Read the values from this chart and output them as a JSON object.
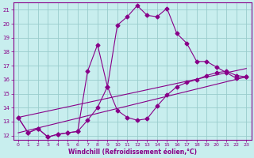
{
  "xlabel": "Windchill (Refroidissement éolien,°C)",
  "xlim": [
    -0.5,
    23.5
  ],
  "ylim": [
    11.7,
    21.5
  ],
  "yticks": [
    12,
    13,
    14,
    15,
    16,
    17,
    18,
    19,
    20,
    21
  ],
  "xticks": [
    0,
    1,
    2,
    3,
    4,
    5,
    6,
    7,
    8,
    9,
    10,
    11,
    12,
    13,
    14,
    15,
    16,
    17,
    18,
    19,
    20,
    21,
    22,
    23
  ],
  "line_color": "#880088",
  "bg_color": "#c8eeee",
  "grid_color": "#99cccc",
  "curve1_x": [
    0,
    1,
    2,
    3,
    4,
    5,
    6,
    7,
    8,
    9,
    10,
    11,
    12,
    13,
    14,
    15,
    16,
    17,
    18,
    19,
    20,
    21,
    22,
    23
  ],
  "curve1_y": [
    13.3,
    12.2,
    12.5,
    11.9,
    12.1,
    12.2,
    12.3,
    13.1,
    14.0,
    15.5,
    19.9,
    20.5,
    21.3,
    20.6,
    20.5,
    21.1,
    19.3,
    18.6,
    17.3,
    17.3,
    16.9,
    16.5,
    16.1,
    16.2
  ],
  "curve2_x": [
    0,
    1,
    2,
    3,
    4,
    5,
    6,
    7,
    8,
    9,
    10,
    11,
    12,
    13,
    14,
    15,
    16,
    17,
    18,
    19,
    20,
    21,
    22,
    23
  ],
  "curve2_y": [
    13.3,
    12.2,
    12.5,
    11.9,
    12.1,
    12.2,
    12.3,
    16.6,
    18.5,
    15.5,
    13.8,
    13.3,
    13.1,
    13.2,
    14.1,
    14.9,
    15.5,
    15.8,
    16.0,
    16.3,
    16.5,
    16.6,
    16.3,
    16.2
  ],
  "line1_x": [
    0,
    23
  ],
  "line1_y": [
    13.3,
    16.8
  ],
  "line2_x": [
    0,
    23
  ],
  "line2_y": [
    12.2,
    16.2
  ]
}
